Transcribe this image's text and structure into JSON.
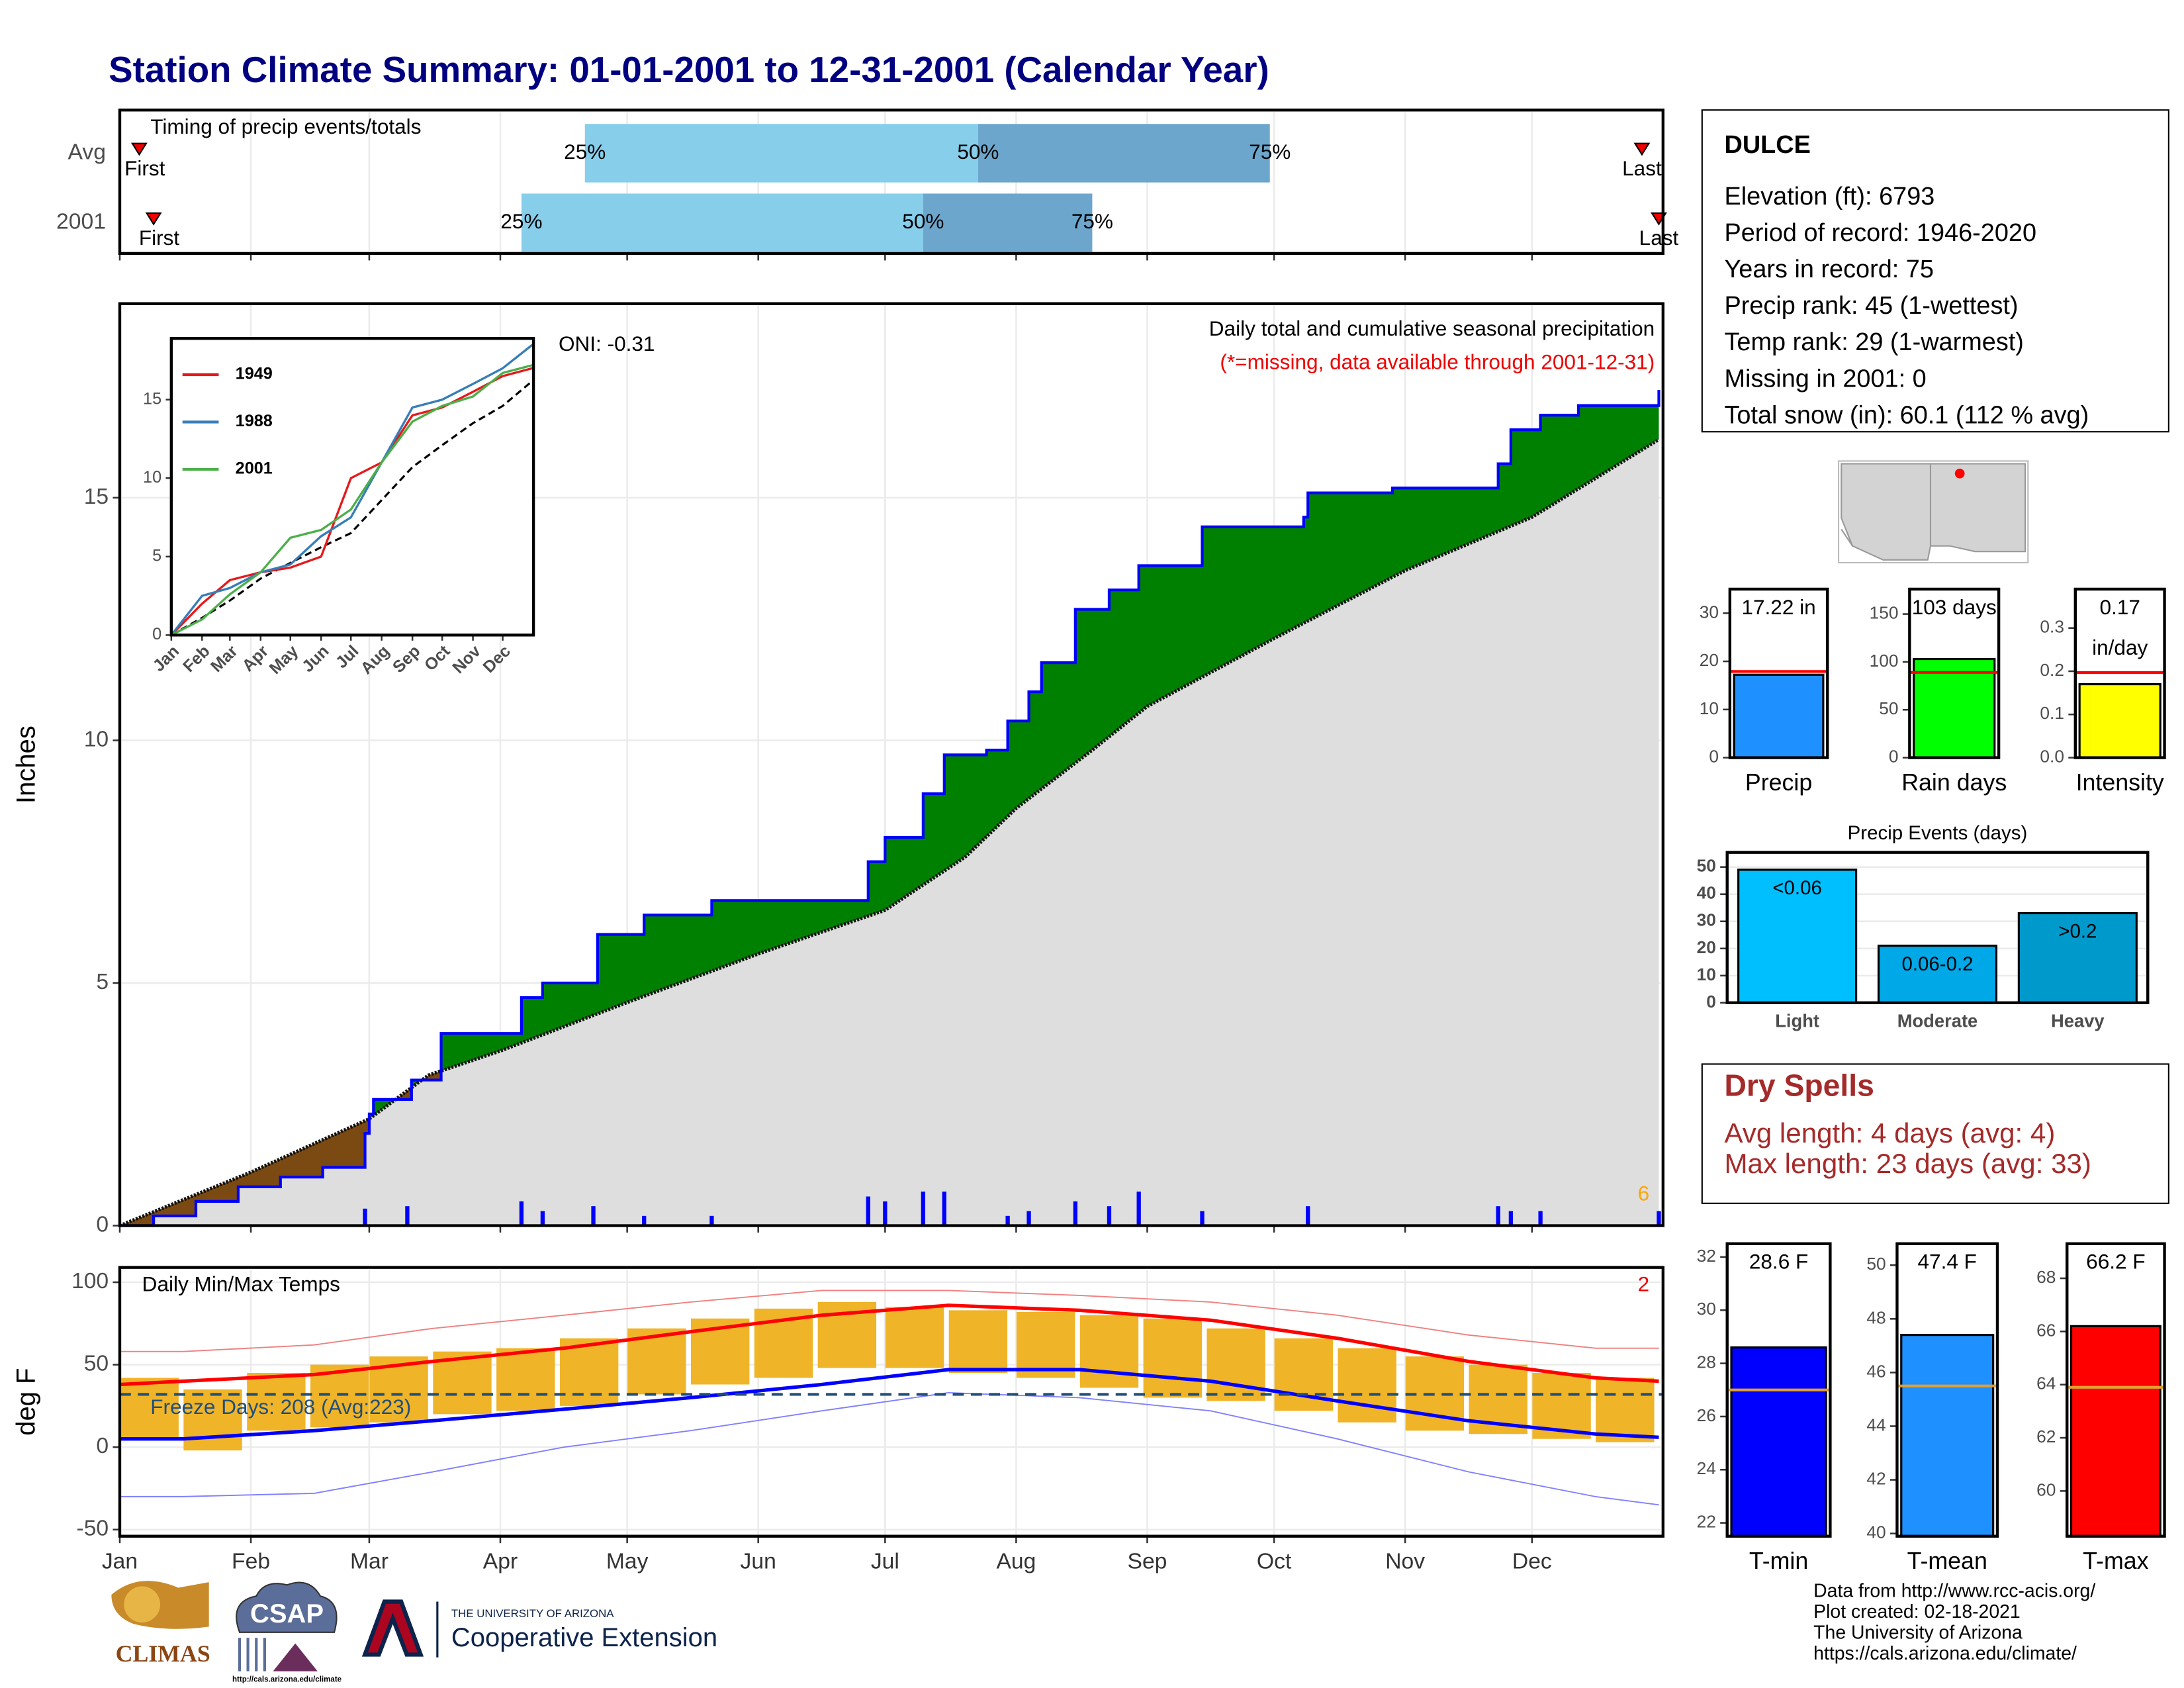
{
  "title": "Station Climate Summary: 01-01-2001 to 12-31-2001 (Calendar Year)",
  "chart_data": [
    {
      "type": "timing",
      "title": "Timing of precip events/totals",
      "categories": [
        "Avg",
        "2001"
      ],
      "first": [
        4.6,
        8
      ],
      "last": [
        360,
        364
      ],
      "quartiles": [
        [
          110,
          203,
          272
        ],
        [
          95,
          190,
          230
        ]
      ],
      "quartile_labels": [
        "25%",
        "50%",
        "75%"
      ],
      "first_label": "First",
      "last_label": "Last",
      "colors": [
        "#87ceeb",
        "#6ca6cd"
      ],
      "xlim": [
        0,
        365
      ]
    },
    {
      "type": "cumulative",
      "title": "Daily total and cumulative seasonal precipitation",
      "note": "(*=missing, data available through 2001-12-31)",
      "annotation": "ONI: -0.31",
      "flag": 6,
      "y_label": "Inches",
      "xlim": [
        0,
        365
      ],
      "ylim": [
        0,
        19
      ],
      "yticks": [
        0,
        5,
        10,
        15
      ],
      "observed": {
        "color": "#0000ff",
        "x": [
          0,
          8,
          18,
          28,
          38,
          48,
          58,
          59,
          60,
          69,
          76,
          95,
          100,
          113,
          124,
          140,
          177,
          181,
          190,
          195,
          205,
          210,
          215,
          218,
          226,
          234,
          241,
          256,
          280,
          281,
          301,
          326,
          329,
          336,
          345,
          364
        ],
        "values": [
          0,
          0.2,
          0.5,
          0.8,
          1.0,
          1.2,
          1.9,
          2.3,
          2.6,
          3.0,
          3.96,
          4.7,
          5.0,
          6.0,
          6.4,
          6.7,
          7.5,
          8.0,
          8.9,
          9.7,
          9.8,
          10.4,
          11.0,
          11.6,
          12.7,
          13.1,
          13.6,
          14.4,
          14.6,
          15.1,
          15.2,
          15.7,
          16.4,
          16.7,
          16.9,
          17.22
        ]
      },
      "average": {
        "color": "#111111",
        "x": [
          0,
          31,
          59,
          73,
          90,
          120,
          151,
          181,
          200,
          212,
          230,
          243,
          273,
          304,
          334,
          364
        ],
        "values": [
          0,
          1.1,
          2.2,
          3.1,
          3.6,
          4.6,
          5.6,
          6.5,
          7.6,
          8.6,
          9.8,
          10.7,
          12.1,
          13.5,
          14.6,
          16.2
        ]
      },
      "daily": {
        "color": "#0000ff",
        "x": [
          58,
          68,
          95,
          100,
          112,
          124,
          140,
          177,
          181,
          190,
          195,
          210,
          215,
          226,
          234,
          241,
          256,
          281,
          326,
          329,
          336,
          364
        ],
        "values": [
          0.35,
          0.4,
          0.5,
          0.3,
          0.4,
          0.2,
          0.2,
          0.6,
          0.5,
          0.7,
          0.7,
          0.2,
          0.3,
          0.5,
          0.4,
          0.7,
          0.3,
          0.4,
          0.4,
          0.3,
          0.3,
          0.3
        ]
      },
      "above_color": "#008000",
      "below_color": "#7b4a12",
      "base_color": "#dedede",
      "flag_color": "#ffa500"
    },
    {
      "type": "inset",
      "xlim": [
        0,
        365
      ],
      "ylim": [
        0,
        18.9
      ],
      "yticks": [
        0,
        5,
        10,
        15
      ],
      "xticks": [
        {
          "value": 0,
          "label": "Jan"
        },
        {
          "value": 31,
          "label": "Feb"
        },
        {
          "value": 59,
          "label": "Mar"
        },
        {
          "value": 90,
          "label": "Apr"
        },
        {
          "value": 120,
          "label": "May"
        },
        {
          "value": 151,
          "label": "Jun"
        },
        {
          "value": 181,
          "label": "Jul"
        },
        {
          "value": 212,
          "label": "Aug"
        },
        {
          "value": 243,
          "label": "Sep"
        },
        {
          "value": 273,
          "label": "Oct"
        },
        {
          "value": 304,
          "label": "Nov"
        },
        {
          "value": 334,
          "label": "Dec"
        }
      ],
      "x": [
        0,
        31,
        59,
        90,
        120,
        151,
        181,
        212,
        243,
        273,
        304,
        334,
        364
      ],
      "series": [
        {
          "name": "1949",
          "color": "#e41a1c",
          "values": [
            0,
            2.0,
            3.5,
            4.0,
            4.3,
            5.0,
            10.0,
            11.0,
            14.0,
            14.5,
            15.5,
            16.5,
            17.0
          ]
        },
        {
          "name": "1988",
          "color": "#377eb8",
          "values": [
            0,
            2.5,
            3.0,
            4.0,
            4.5,
            6.3,
            7.5,
            11.0,
            14.5,
            15.0,
            16.0,
            17.0,
            18.5
          ]
        },
        {
          "name": "2001",
          "color": "#4daf4a",
          "values": [
            0,
            1.0,
            2.6,
            4.0,
            6.2,
            6.7,
            8.0,
            11.0,
            13.6,
            14.6,
            15.2,
            16.7,
            17.2
          ]
        }
      ],
      "average": {
        "color": "#000000",
        "values": [
          0,
          1.1,
          2.2,
          3.6,
          4.6,
          5.6,
          6.5,
          8.6,
          10.7,
          12.1,
          13.5,
          14.6,
          16.2
        ]
      }
    },
    {
      "type": "temperature",
      "title": "Daily Min/Max Temps",
      "y_label": "deg F",
      "flag": 2,
      "freeze_label": "Freeze Days: 208 (Avg:223)",
      "freeze_line": 32,
      "xlim": [
        0,
        365
      ],
      "ylim": [
        -54,
        109
      ],
      "yticks": [
        -50,
        0,
        50,
        100
      ],
      "xticks": [
        {
          "value": 0,
          "label": "Jan"
        },
        {
          "value": 31,
          "label": "Feb"
        },
        {
          "value": 59,
          "label": "Mar"
        },
        {
          "value": 90,
          "label": "Apr"
        },
        {
          "value": 120,
          "label": "May"
        },
        {
          "value": 151,
          "label": "Jun"
        },
        {
          "value": 181,
          "label": "Jul"
        },
        {
          "value": 212,
          "label": "Aug"
        },
        {
          "value": 243,
          "label": "Sep"
        },
        {
          "value": 273,
          "label": "Oct"
        },
        {
          "value": 304,
          "label": "Nov"
        },
        {
          "value": 334,
          "label": "Dec"
        }
      ],
      "bars": {
        "color": "#f0b429",
        "x": [
          7,
          22,
          37,
          52,
          66,
          81,
          96,
          111,
          127,
          142,
          157,
          172,
          188,
          203,
          219,
          234,
          249,
          264,
          280,
          295,
          311,
          326,
          341,
          356
        ],
        "high": [
          42,
          35,
          45,
          50,
          55,
          58,
          60,
          66,
          72,
          78,
          84,
          88,
          85,
          83,
          82,
          80,
          78,
          72,
          66,
          60,
          55,
          50,
          45,
          42
        ],
        "low": [
          5,
          -2,
          10,
          12,
          15,
          20,
          22,
          25,
          32,
          38,
          42,
          48,
          48,
          45,
          42,
          36,
          30,
          28,
          22,
          15,
          10,
          8,
          5,
          3
        ]
      },
      "normals_x": [
        0,
        15,
        46,
        74,
        105,
        135,
        166,
        196,
        227,
        258,
        288,
        319,
        349,
        364
      ],
      "normal_max": {
        "color": "#ff0000",
        "values": [
          38,
          40,
          44,
          52,
          60,
          70,
          80,
          86,
          83,
          77,
          66,
          52,
          42,
          40
        ]
      },
      "normal_min": {
        "color": "#0000ff",
        "values": [
          5,
          5,
          10,
          16,
          23,
          30,
          38,
          47,
          47,
          40,
          28,
          16,
          8,
          6
        ]
      },
      "record_max": {
        "color": "#f08080",
        "values": [
          58,
          58,
          62,
          72,
          80,
          88,
          95,
          95,
          92,
          88,
          80,
          68,
          60,
          60
        ]
      },
      "record_min": {
        "color": "#8080ff",
        "values": [
          -30,
          -30,
          -28,
          -15,
          0,
          10,
          22,
          33,
          30,
          22,
          5,
          -15,
          -30,
          -35
        ]
      },
      "freeze_color": "#1f4e79"
    },
    {
      "type": "bar",
      "category": "Precip",
      "value": 17.22,
      "value_label": "17.22 in",
      "avg": 17.9,
      "color": "#1e90ff",
      "avg_color": "#ff0000",
      "ylim": [
        0,
        35
      ],
      "yticks": [
        0,
        10,
        20,
        30
      ]
    },
    {
      "type": "bar",
      "category": "Rain days",
      "value": 103,
      "value_label": "103 days",
      "avg": 89,
      "color": "#00ff00",
      "avg_color": "#ff0000",
      "ylim": [
        0,
        176
      ],
      "yticks": [
        0,
        50,
        100,
        150
      ]
    },
    {
      "type": "bar",
      "category": "Intensity",
      "value": 0.17,
      "value_label": "0.17",
      "unit": "in/day",
      "avg": 0.197,
      "color": "#ffff00",
      "avg_color": "#ff0000",
      "ylim": [
        0,
        0.39
      ],
      "yticks": [
        {
          "value": 0,
          "label": "0.0"
        },
        0.1,
        0.2,
        0.3
      ]
    },
    {
      "type": "events",
      "title": "Precip Events (days)",
      "categories": [
        "Light",
        "Moderate",
        "Heavy"
      ],
      "values": [
        49,
        21,
        33
      ],
      "bar_labels": [
        "<0.06",
        "0.06-0.2",
        ">0.2"
      ],
      "colors": [
        "#00bfff",
        "#00a8e8",
        "#0099cc"
      ],
      "ylim": [
        0,
        55.4
      ],
      "yticks": [
        0,
        10,
        20,
        30,
        40,
        50
      ]
    },
    {
      "type": "bar",
      "category": "T-min",
      "value": 28.6,
      "value_label": "28.6 F",
      "avg": 27.0,
      "color": "#0000ff",
      "avg_color": "#e0a030",
      "ylim": [
        21.5,
        32.5
      ],
      "yticks": [
        22,
        24,
        26,
        28,
        30,
        32
      ]
    },
    {
      "type": "bar",
      "category": "T-mean",
      "value": 47.4,
      "value_label": "47.4 F",
      "avg": 45.5,
      "color": "#1e90ff",
      "avg_color": "#e0a030",
      "ylim": [
        39.9,
        50.8
      ],
      "yticks": [
        40,
        42,
        44,
        46,
        48,
        50
      ]
    },
    {
      "type": "bar",
      "category": "T-max",
      "value": 66.2,
      "value_label": "66.2 F",
      "avg": 63.9,
      "color": "#ff0000",
      "avg_color": "#e0a030",
      "ylim": [
        58.3,
        69.3
      ],
      "yticks": [
        60,
        62,
        64,
        66,
        68
      ]
    }
  ],
  "station": {
    "name": "DULCE",
    "lines": [
      "Elevation (ft): 6793",
      "Period of record: 1946-2020",
      "Years in record: 75",
      "Precip rank: 45 (1-wettest)",
      "Temp rank: 29 (1-warmest)",
      "Missing in 2001: 0",
      "Total snow (in): 60.1 (112 % avg)"
    ]
  },
  "dry_spells": {
    "title": "Dry Spells",
    "lines": [
      "Avg length: 4 days (avg: 4)",
      "Max length: 23 days (avg: 33)"
    ]
  },
  "footer": {
    "lines": [
      "Data from http://www.rcc-acis.org/",
      "Plot created: 02-18-2021",
      "The University of Arizona",
      "https://cals.arizona.edu/climate/"
    ],
    "logos": {
      "climas": "CLIMAS",
      "csap": "CSAP",
      "csap_url": "http://cals.arizona.edu/climate",
      "university": "THE UNIVERSITY OF ARIZONA",
      "extension": "Cooperative Extension"
    }
  }
}
